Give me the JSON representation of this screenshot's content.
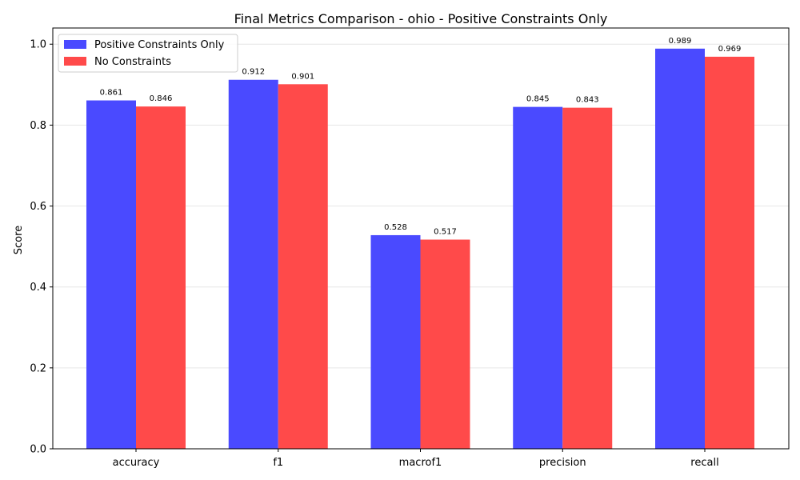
{
  "chart_data": {
    "type": "bar",
    "title": "Final Metrics Comparison - ohio - Positive Constraints Only",
    "xlabel": "",
    "ylabel": "Score",
    "categories": [
      "accuracy",
      "f1",
      "macrof1",
      "precision",
      "recall"
    ],
    "series": [
      {
        "name": "Positive Constraints Only",
        "color": "#4a4aff",
        "values": [
          0.861,
          0.912,
          0.528,
          0.845,
          0.989
        ],
        "labels": [
          "0.861",
          "0.912",
          "0.528",
          "0.845",
          "0.989"
        ]
      },
      {
        "name": "No Constraints",
        "color": "#ff4a4a",
        "values": [
          0.846,
          0.901,
          0.517,
          0.843,
          0.969
        ],
        "labels": [
          "0.846",
          "0.901",
          "0.517",
          "0.843",
          "0.969"
        ]
      }
    ],
    "ylim": [
      0,
      1.04
    ],
    "yticks": [
      0.0,
      0.2,
      0.4,
      0.6,
      0.8,
      1.0
    ],
    "ytick_labels": [
      "0.0",
      "0.2",
      "0.4",
      "0.6",
      "0.8",
      "1.0"
    ],
    "grid": "y",
    "legend_position": "upper left"
  }
}
